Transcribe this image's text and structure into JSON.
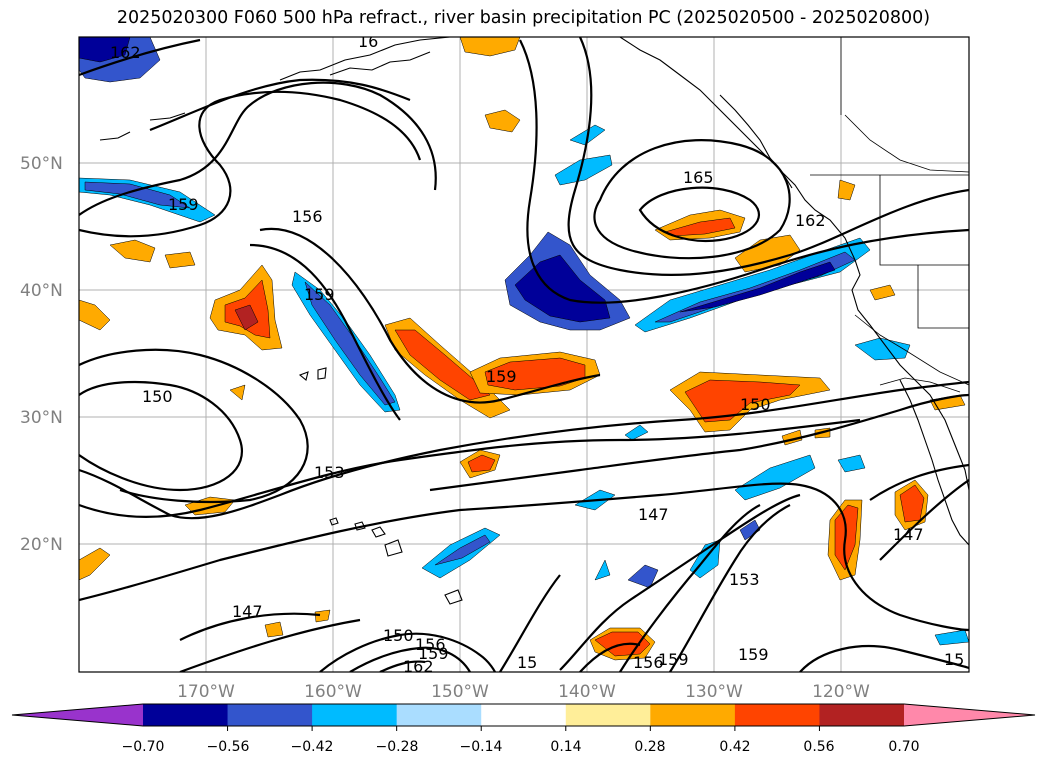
{
  "title": "2025020300 F060 500 hPa refract., river basin precipitation PC (2025020500 - 2025020800)",
  "map": {
    "lat_labels": [
      "50°N",
      "40°N",
      "30°N",
      "20°N"
    ],
    "lon_labels": [
      "170°W",
      "160°W",
      "150°W",
      "140°W",
      "130°W",
      "120°W"
    ],
    "contour_labels": [
      "162",
      "165",
      "162",
      "159",
      "156",
      "159",
      "159",
      "150",
      "150",
      "153",
      "147",
      "147",
      "147",
      "153",
      "150",
      "156",
      "159",
      "162",
      "15",
      "156",
      "159",
      "159",
      "15",
      "16"
    ]
  },
  "colorbar": {
    "colors": [
      "#9933cc",
      "#000099",
      "#3355cc",
      "#00bbff",
      "#aaddff",
      "#ffffff",
      "#ffee99",
      "#ffaa00",
      "#ff4400",
      "#b22222",
      "#ff88aa"
    ],
    "tick_labels": [
      "−0.70",
      "−0.56",
      "−0.42",
      "−0.28",
      "−0.14",
      "0.14",
      "0.28",
      "0.42",
      "0.56",
      "0.70"
    ]
  }
}
